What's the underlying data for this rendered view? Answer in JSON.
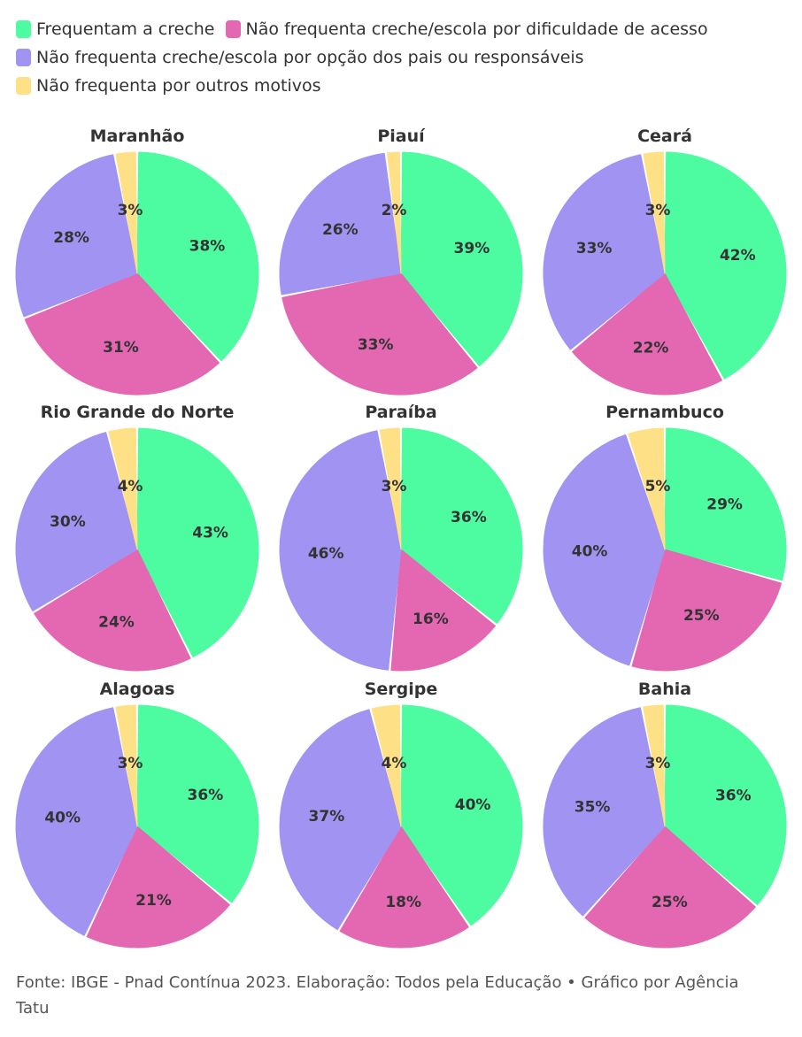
{
  "legend": [
    {
      "label": "Frequentam a creche",
      "color": "#4dfca1"
    },
    {
      "label": "Não frequenta creche/escola por dificuldade de acesso",
      "color": "#e467b2"
    },
    {
      "label": "Não frequenta creche/escola por opção dos pais ou responsáveis",
      "color": "#a193f2"
    },
    {
      "label": "Não frequenta por outros motivos",
      "color": "#fee087"
    }
  ],
  "chart_data": [
    {
      "type": "pie",
      "title": "Maranhão",
      "categories": [
        "Frequentam a creche",
        "Não frequenta creche/escola por dificuldade de acesso",
        "Não frequenta creche/escola por opção dos pais ou responsáveis",
        "Não frequenta por outros motivos"
      ],
      "values": [
        38,
        31,
        28,
        3
      ],
      "labels": [
        "38%",
        "31%",
        "28%",
        "3%"
      ]
    },
    {
      "type": "pie",
      "title": "Piauí",
      "categories": [
        "Frequentam a creche",
        "Não frequenta creche/escola por dificuldade de acesso",
        "Não frequenta creche/escola por opção dos pais ou responsáveis",
        "Não frequenta por outros motivos"
      ],
      "values": [
        39,
        33,
        26,
        2
      ],
      "labels": [
        "39%",
        "33%",
        "26%",
        "2%"
      ]
    },
    {
      "type": "pie",
      "title": "Ceará",
      "categories": [
        "Frequentam a creche",
        "Não frequenta creche/escola por dificuldade de acesso",
        "Não frequenta creche/escola por opção dos pais ou responsáveis",
        "Não frequenta por outros motivos"
      ],
      "values": [
        42,
        22,
        33,
        3
      ],
      "labels": [
        "42%",
        "22%",
        "33%",
        "3%"
      ]
    },
    {
      "type": "pie",
      "title": "Rio Grande do Norte",
      "categories": [
        "Frequentam a creche",
        "Não frequenta creche/escola por dificuldade de acesso",
        "Não frequenta creche/escola por opção dos pais ou responsáveis",
        "Não frequenta por outros motivos"
      ],
      "values": [
        43,
        24,
        30,
        4
      ],
      "labels": [
        "43%",
        "24%",
        "30%",
        "4%"
      ]
    },
    {
      "type": "pie",
      "title": "Paraíba",
      "categories": [
        "Frequentam a creche",
        "Não frequenta creche/escola por dificuldade de acesso",
        "Não frequenta creche/escola por opção dos pais ou responsáveis",
        "Não frequenta por outros motivos"
      ],
      "values": [
        36,
        16,
        46,
        3
      ],
      "labels": [
        "36%",
        "16%",
        "46%",
        "3%"
      ]
    },
    {
      "type": "pie",
      "title": "Pernambuco",
      "categories": [
        "Frequentam a creche",
        "Não frequenta creche/escola por dificuldade de acesso",
        "Não frequenta creche/escola por opção dos pais ou responsáveis",
        "Não frequenta por outros motivos"
      ],
      "values": [
        29,
        25,
        40,
        5
      ],
      "labels": [
        "29%",
        "25%",
        "40%",
        "5%"
      ]
    },
    {
      "type": "pie",
      "title": "Alagoas",
      "categories": [
        "Frequentam a creche",
        "Não frequenta creche/escola por dificuldade de acesso",
        "Não frequenta creche/escola por opção dos pais ou responsáveis",
        "Não frequenta por outros motivos"
      ],
      "values": [
        36,
        21,
        40,
        3
      ],
      "labels": [
        "36%",
        "21%",
        "40%",
        "3%"
      ]
    },
    {
      "type": "pie",
      "title": "Sergipe",
      "categories": [
        "Frequentam a creche",
        "Não frequenta creche/escola por dificuldade de acesso",
        "Não frequenta creche/escola por opção dos pais ou responsáveis",
        "Não frequenta por outros motivos"
      ],
      "values": [
        40,
        18,
        37,
        4
      ],
      "labels": [
        "40%",
        "18%",
        "37%",
        "4%"
      ]
    },
    {
      "type": "pie",
      "title": "Bahia",
      "categories": [
        "Frequentam a creche",
        "Não frequenta creche/escola por dificuldade de acesso",
        "Não frequenta creche/escola por opção dos pais ou responsáveis",
        "Não frequenta por outros motivos"
      ],
      "values": [
        36,
        25,
        35,
        3
      ],
      "labels": [
        "36%",
        "25%",
        "35%",
        "3%"
      ]
    }
  ],
  "footer": {
    "source": "Fonte: IBGE - Pnad Contínua 2023. Elaboração: Todos pela Educação • Gráfico por Agência Tatu"
  }
}
